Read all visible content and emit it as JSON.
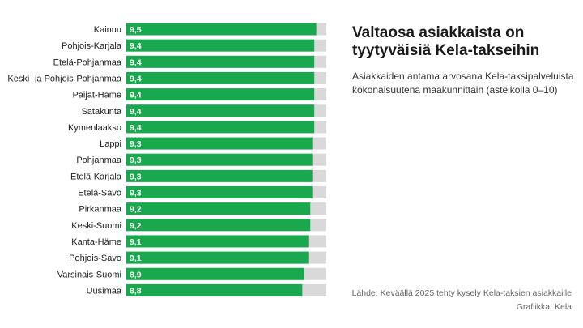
{
  "chart_data": {
    "type": "bar",
    "orientation": "horizontal",
    "title": "Valtaosa asiakkaista on tyytyväisiä Kela-takseihin",
    "subtitle": "Asiakkaiden antama arvosana Kela-taksipalveluista kokonaisuutena maakunnittain (asteikolla 0–10)",
    "categories": [
      "Kainuu",
      "Pohjois-Karjala",
      "Etelä-Pohjanmaa",
      "Keski- ja Pohjois-Pohjanmaa",
      "Päijät-Häme",
      "Satakunta",
      "Kymenlaakso",
      "Lappi",
      "Pohjanmaa",
      "Etelä-Karjala",
      "Etelä-Savo",
      "Pirkanmaa",
      "Keski-Suomi",
      "Kanta-Häme",
      "Pohjois-Savo",
      "Varsinais-Suomi",
      "Uusimaa"
    ],
    "values": [
      9.5,
      9.4,
      9.4,
      9.4,
      9.4,
      9.4,
      9.4,
      9.3,
      9.3,
      9.3,
      9.3,
      9.2,
      9.2,
      9.1,
      9.1,
      8.9,
      8.8
    ],
    "value_labels": [
      "9,5",
      "9,4",
      "9,4",
      "9,4",
      "9,4",
      "9,4",
      "9,4",
      "9,3",
      "9,3",
      "9,3",
      "9,3",
      "9,2",
      "9,2",
      "9,1",
      "9,1",
      "8,9",
      "8,8"
    ],
    "scale_max": 10,
    "bar_color": "#1aa84f",
    "remainder_color": "#d9d9d9",
    "grid": false,
    "legend": "none"
  },
  "source_line": "Lähde: Keväällä 2025 tehty kysely Kela-taksien asiakkaille",
  "credit_line": "Grafiikka: Kela"
}
